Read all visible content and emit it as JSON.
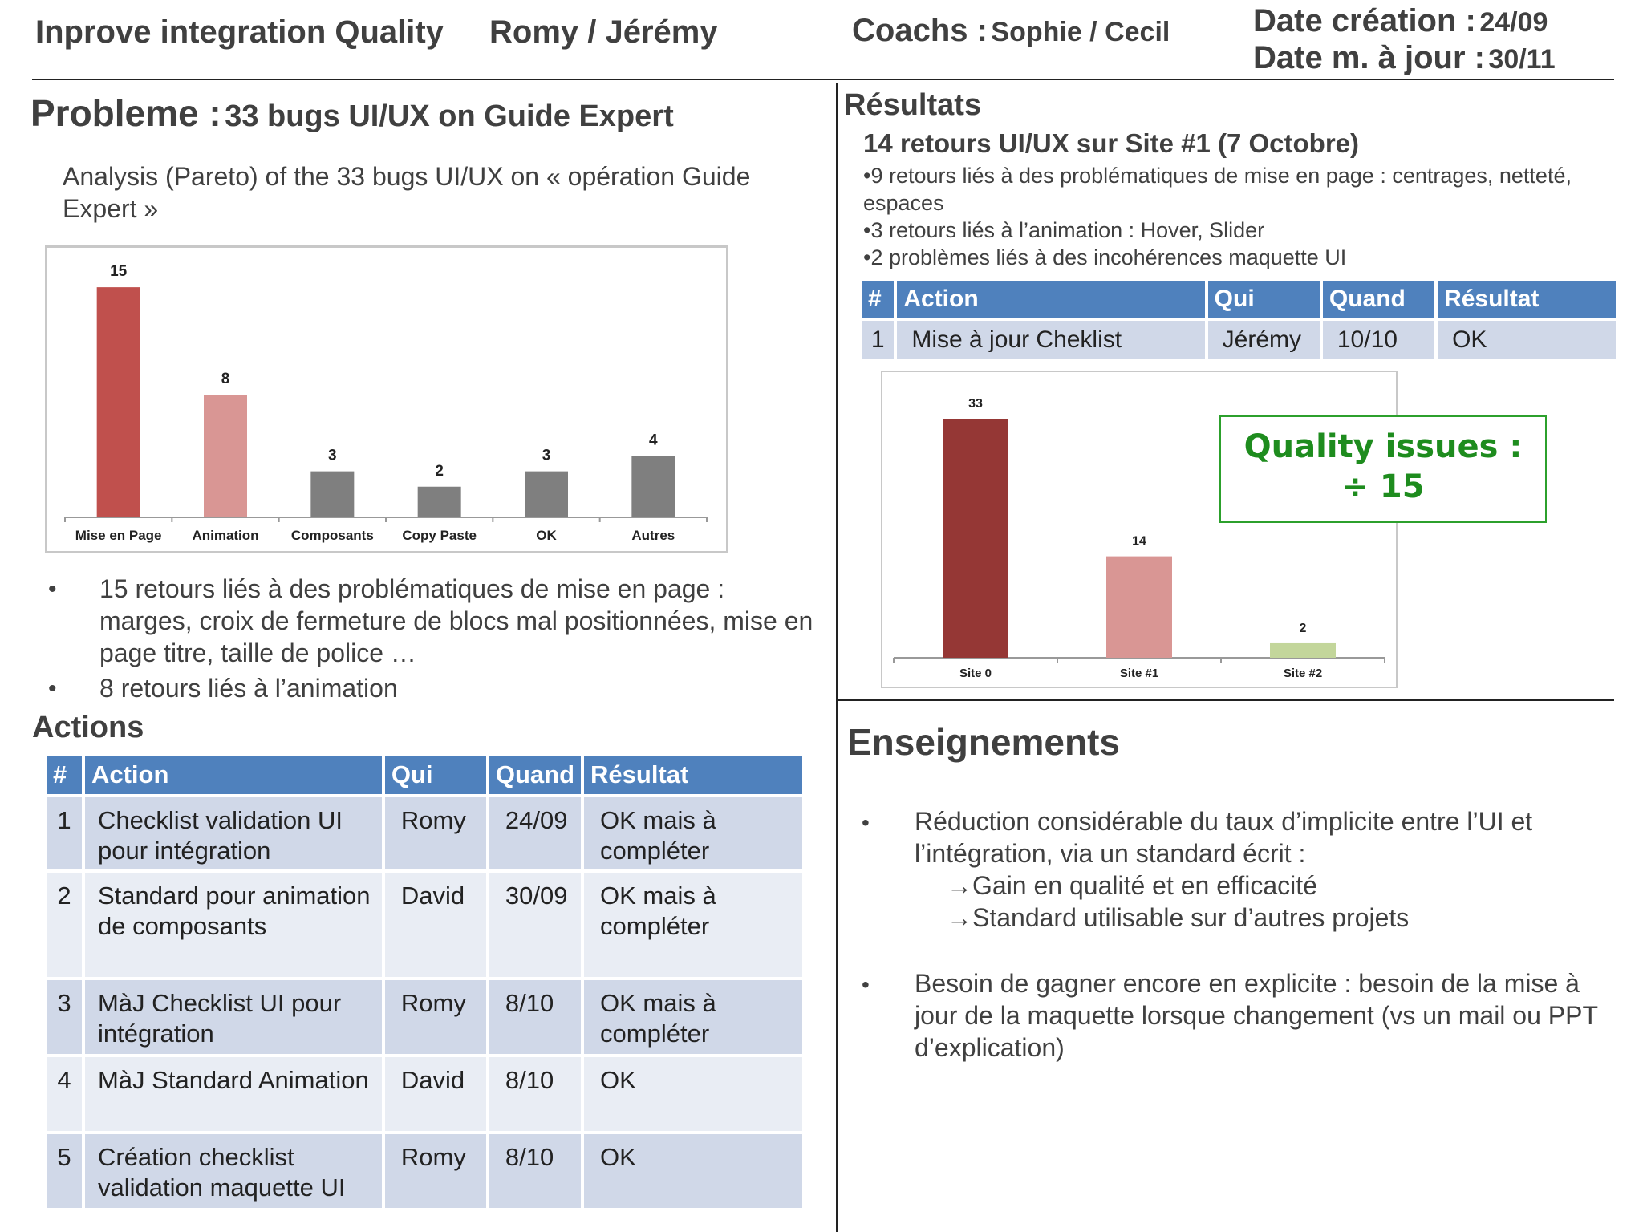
{
  "header": {
    "title": "Inprove integration Quality",
    "team": "Romy / Jérémy",
    "coachs_label": "Coachs :",
    "coachs_value": "Sophie / Cecil",
    "date_creation_label": "Date création :",
    "date_creation_value": "24/09",
    "date_update_label": "Date m. à jour :",
    "date_update_value": "30/11"
  },
  "probleme": {
    "label": "Probleme :",
    "title": "33 bugs UI/UX on Guide Expert",
    "analysis": "Analysis (Pareto) of the 33 bugs UI/UX on « opération Guide Expert »",
    "bullets": [
      "15 retours liés à des problématiques de mise en page : marges, croix de fermeture de blocs mal positionnées, mise en page titre, taille de police …",
      "8 retours liés à l’animation"
    ]
  },
  "actions": {
    "title": "Actions",
    "headers": [
      "#",
      "Action",
      "Qui",
      "Quand",
      "Résultat"
    ],
    "rows": [
      [
        "1",
        "Checklist validation UI pour intégration",
        "Romy",
        "24/09",
        "OK mais à compléter"
      ],
      [
        "2",
        "Standard pour animation de composants",
        "David",
        "30/09",
        "OK mais à compléter"
      ],
      [
        "3",
        "MàJ Checklist UI pour intégration",
        "Romy",
        "8/10",
        "OK mais à compléter"
      ],
      [
        "4",
        "MàJ Standard Animation",
        "David",
        "8/10",
        "OK"
      ],
      [
        "5",
        "Création checklist validation maquette UI",
        "Romy",
        "8/10",
        "OK"
      ]
    ]
  },
  "resultats": {
    "title": "Résultats",
    "subtitle": "14 retours UI/UX sur Site #1 (7 Octobre)",
    "bullets": [
      "•9 retours liés à des problématiques de mise en page : centrages, netteté, espaces",
      "•3 retours liés à l’animation : Hover, Slider",
      "•2 problèmes liés à des incohérences maquette UI"
    ],
    "headers": [
      "#",
      "Action",
      "Qui",
      "Quand",
      "Résultat"
    ],
    "rows": [
      [
        "1",
        "Mise à jour Cheklist",
        "Jérémy",
        "10/10",
        "OK"
      ]
    ],
    "quality_line1": "Quality issues :",
    "quality_line2": "÷ 15"
  },
  "enseignements": {
    "title": "Enseignements",
    "bullet1": "Réduction considérable du taux d’implicite entre l’UI et l’intégration, via un standard écrit :",
    "arrow1": "Gain en qualité et en efficacité",
    "arrow2": "Standard utilisable sur d’autres projets",
    "bullet2": "Besoin de gagner encore en explicite : besoin de la mise à jour de la maquette lorsque changement (vs un mail ou PPT d’explication)",
    "arrow_glyph": "→",
    "bullet_glyph": "•"
  },
  "chart_data": [
    {
      "type": "bar",
      "categories": [
        "Mise en Page",
        "Animation",
        "Composants",
        "Copy Paste",
        "OK",
        "Autres"
      ],
      "values": [
        15,
        8,
        3,
        2,
        3,
        4
      ],
      "colors": [
        "#c0504d",
        "#d99694",
        "#7f7f7f",
        "#7f7f7f",
        "#7f7f7f",
        "#7f7f7f"
      ],
      "ylim": [
        0,
        16
      ],
      "grid": false,
      "data_labels": true
    },
    {
      "type": "bar",
      "categories": [
        "Site 0",
        "Site #1",
        "Site #2"
      ],
      "values": [
        33,
        14,
        2
      ],
      "colors": [
        "#953735",
        "#d99694",
        "#c3d69b"
      ],
      "ylim": [
        0,
        35
      ],
      "grid": false,
      "data_labels": true
    }
  ]
}
